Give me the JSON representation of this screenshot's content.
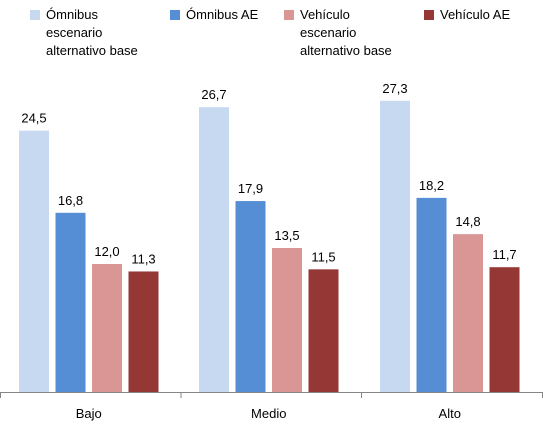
{
  "chart_data": {
    "type": "bar",
    "categories": [
      "Bajo",
      "Medio",
      "Alto"
    ],
    "series": [
      {
        "name": "Ómnibus\nescenario\nalternativo base",
        "color": "#c6d9f1",
        "values": [
          24.5,
          26.7,
          27.3
        ],
        "labels": [
          "24,5",
          "26,7",
          "27,3"
        ]
      },
      {
        "name": "Ómnibus AE",
        "color": "#558ed5",
        "values": [
          16.8,
          17.9,
          18.2
        ],
        "labels": [
          "16,8",
          "17,9",
          "18,2"
        ]
      },
      {
        "name": "Vehículo\n escenario\nalternativo base",
        "color": "#d99694",
        "values": [
          12.0,
          13.5,
          14.8
        ],
        "labels": [
          "12,0",
          "13,5",
          "14,8"
        ]
      },
      {
        "name": "Vehículo AE",
        "color": "#953735",
        "values": [
          11.3,
          11.5,
          11.7
        ],
        "labels": [
          "11,3",
          "11,5",
          "11,7"
        ]
      }
    ],
    "ylim": [
      0,
      30
    ],
    "grid": false,
    "legend": "top"
  }
}
